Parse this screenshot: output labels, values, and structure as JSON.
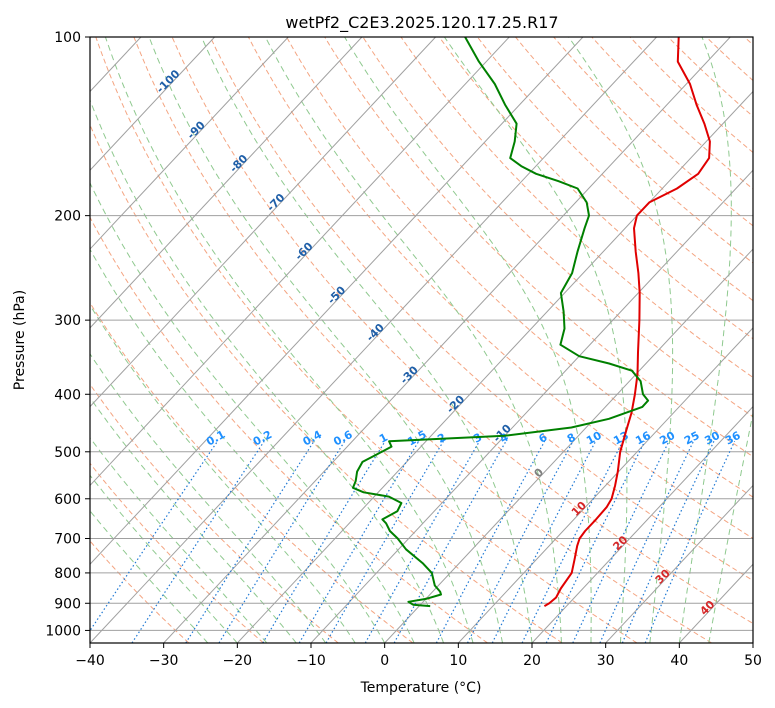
{
  "chart_data": {
    "type": "line",
    "diagram": "skew-t log-p",
    "title": "wetPf2_C2E3.2025.120.17.25.R17",
    "xlabel": "Temperature (°C)",
    "ylabel": "Pressure (hPa)",
    "xlim": [
      -40,
      50
    ],
    "ylim": [
      1050,
      100
    ],
    "y_scale": "log",
    "grid": true,
    "x_ticks": [
      "−40",
      "−30",
      "−20",
      "−10",
      "0",
      "10",
      "20",
      "30",
      "40",
      "50"
    ],
    "y_ticks": [
      "100",
      "200",
      "300",
      "400",
      "500",
      "600",
      "700",
      "800",
      "900",
      "1000"
    ],
    "x_tick_values": [
      -40,
      -30,
      -20,
      -10,
      0,
      10,
      20,
      30,
      40,
      50
    ],
    "y_tick_values": [
      100,
      200,
      300,
      400,
      500,
      600,
      700,
      800,
      900,
      1000
    ],
    "series": [
      {
        "color": "#e00000",
        "points": [
          [
            910,
            17
          ],
          [
            900,
            17.3
          ],
          [
            880,
            17.5
          ],
          [
            850,
            17.0
          ],
          [
            800,
            16.5
          ],
          [
            760,
            15.2
          ],
          [
            720,
            13.8
          ],
          [
            700,
            13.2
          ],
          [
            680,
            13.0
          ],
          [
            650,
            13.0
          ],
          [
            620,
            12.9
          ],
          [
            600,
            12.5
          ],
          [
            570,
            11.3
          ],
          [
            540,
            9.9
          ],
          [
            500,
            7.7
          ],
          [
            460,
            5.8
          ],
          [
            430,
            4.3
          ],
          [
            400,
            2.4
          ],
          [
            370,
            0.2
          ],
          [
            340,
            -2.5
          ],
          [
            300,
            -6.4
          ],
          [
            270,
            -9.8
          ],
          [
            250,
            -12.5
          ],
          [
            230,
            -15.6
          ],
          [
            210,
            -18.8
          ],
          [
            200,
            -20.0
          ],
          [
            190,
            -20.0
          ],
          [
            180,
            -18.0
          ],
          [
            170,
            -17.0
          ],
          [
            160,
            -17.5
          ],
          [
            150,
            -19.5
          ],
          [
            140,
            -22.5
          ],
          [
            130,
            -26.0
          ],
          [
            120,
            -29.5
          ],
          [
            110,
            -34.0
          ],
          [
            100,
            -37.0
          ]
        ]
      },
      {
        "color": "#008000",
        "points": [
          [
            910,
            1.5
          ],
          [
            905,
            -1.0
          ],
          [
            895,
            -2.0
          ],
          [
            885,
            0.0
          ],
          [
            870,
            1.5
          ],
          [
            860,
            1.0
          ],
          [
            840,
            -0.5
          ],
          [
            800,
            -2.5
          ],
          [
            770,
            -5.0
          ],
          [
            730,
            -9.0
          ],
          [
            700,
            -11.5
          ],
          [
            680,
            -13.5
          ],
          [
            660,
            -15.0
          ],
          [
            650,
            -16.0
          ],
          [
            630,
            -15.0
          ],
          [
            610,
            -15.5
          ],
          [
            595,
            -18.0
          ],
          [
            585,
            -22.0
          ],
          [
            575,
            -24.0
          ],
          [
            560,
            -24.5
          ],
          [
            540,
            -25.5
          ],
          [
            520,
            -26.0
          ],
          [
            505,
            -25.0
          ],
          [
            490,
            -24.0
          ],
          [
            480,
            -25.0
          ],
          [
            470,
            -10.0
          ],
          [
            455,
            -2.0
          ],
          [
            440,
            2.0
          ],
          [
            420,
            5.0
          ],
          [
            410,
            5.0
          ],
          [
            400,
            3.5
          ],
          [
            380,
            1.5
          ],
          [
            365,
            -1.0
          ],
          [
            355,
            -5.0
          ],
          [
            345,
            -10.0
          ],
          [
            330,
            -14.0
          ],
          [
            310,
            -15.5
          ],
          [
            290,
            -17.8
          ],
          [
            270,
            -20.5
          ],
          [
            250,
            -21.5
          ],
          [
            230,
            -23.5
          ],
          [
            210,
            -25.5
          ],
          [
            200,
            -26.5
          ],
          [
            190,
            -28.5
          ],
          [
            180,
            -31.5
          ],
          [
            175,
            -35.0
          ],
          [
            170,
            -39.0
          ],
          [
            165,
            -42.0
          ],
          [
            160,
            -44.5
          ],
          [
            150,
            -46.0
          ],
          [
            140,
            -48.0
          ],
          [
            130,
            -52.0
          ],
          [
            120,
            -56.0
          ],
          [
            110,
            -61.0
          ],
          [
            100,
            -66.0
          ]
        ]
      }
    ],
    "isotherm_labels": [
      "-100",
      "-90",
      "-80",
      "-70",
      "-60",
      "-50",
      "-40",
      "-30",
      "-20",
      "-10",
      "0",
      "10",
      "20",
      "30",
      "40"
    ],
    "isotherm_label_values": [
      -100,
      -90,
      -80,
      -70,
      -60,
      -50,
      -40,
      -30,
      -20,
      -10,
      0,
      10,
      20,
      30,
      40
    ],
    "mixing_ratio_labels": [
      "0.1",
      "0.2",
      "0.4",
      "0.6",
      "1",
      "1.5",
      "2",
      "3",
      "4",
      "6",
      "8",
      "10",
      "13",
      "16",
      "20",
      "25",
      "30",
      "36"
    ],
    "mixing_ratio_values": [
      0.1,
      0.2,
      0.4,
      0.6,
      1,
      1.5,
      2,
      3,
      4,
      6,
      8,
      10,
      13,
      16,
      20,
      25,
      30,
      36
    ],
    "colors": {
      "temperature": "#e00000",
      "dewpoint": "#008000",
      "isotherm": "#a0a0a0",
      "isobar": "#a0a0a0",
      "dry_adiabat": "#f4a582",
      "moist_adiabat": "#8fc98f",
      "mixing_ratio": "#1f78d4",
      "isotherm_label": "#1f5fa8",
      "isotherm_label_warm": "#d62728",
      "isotherm_label_zero": "#808080",
      "mixing_label": "#1e90ff",
      "dgz_curve": "#d9b98c"
    }
  }
}
